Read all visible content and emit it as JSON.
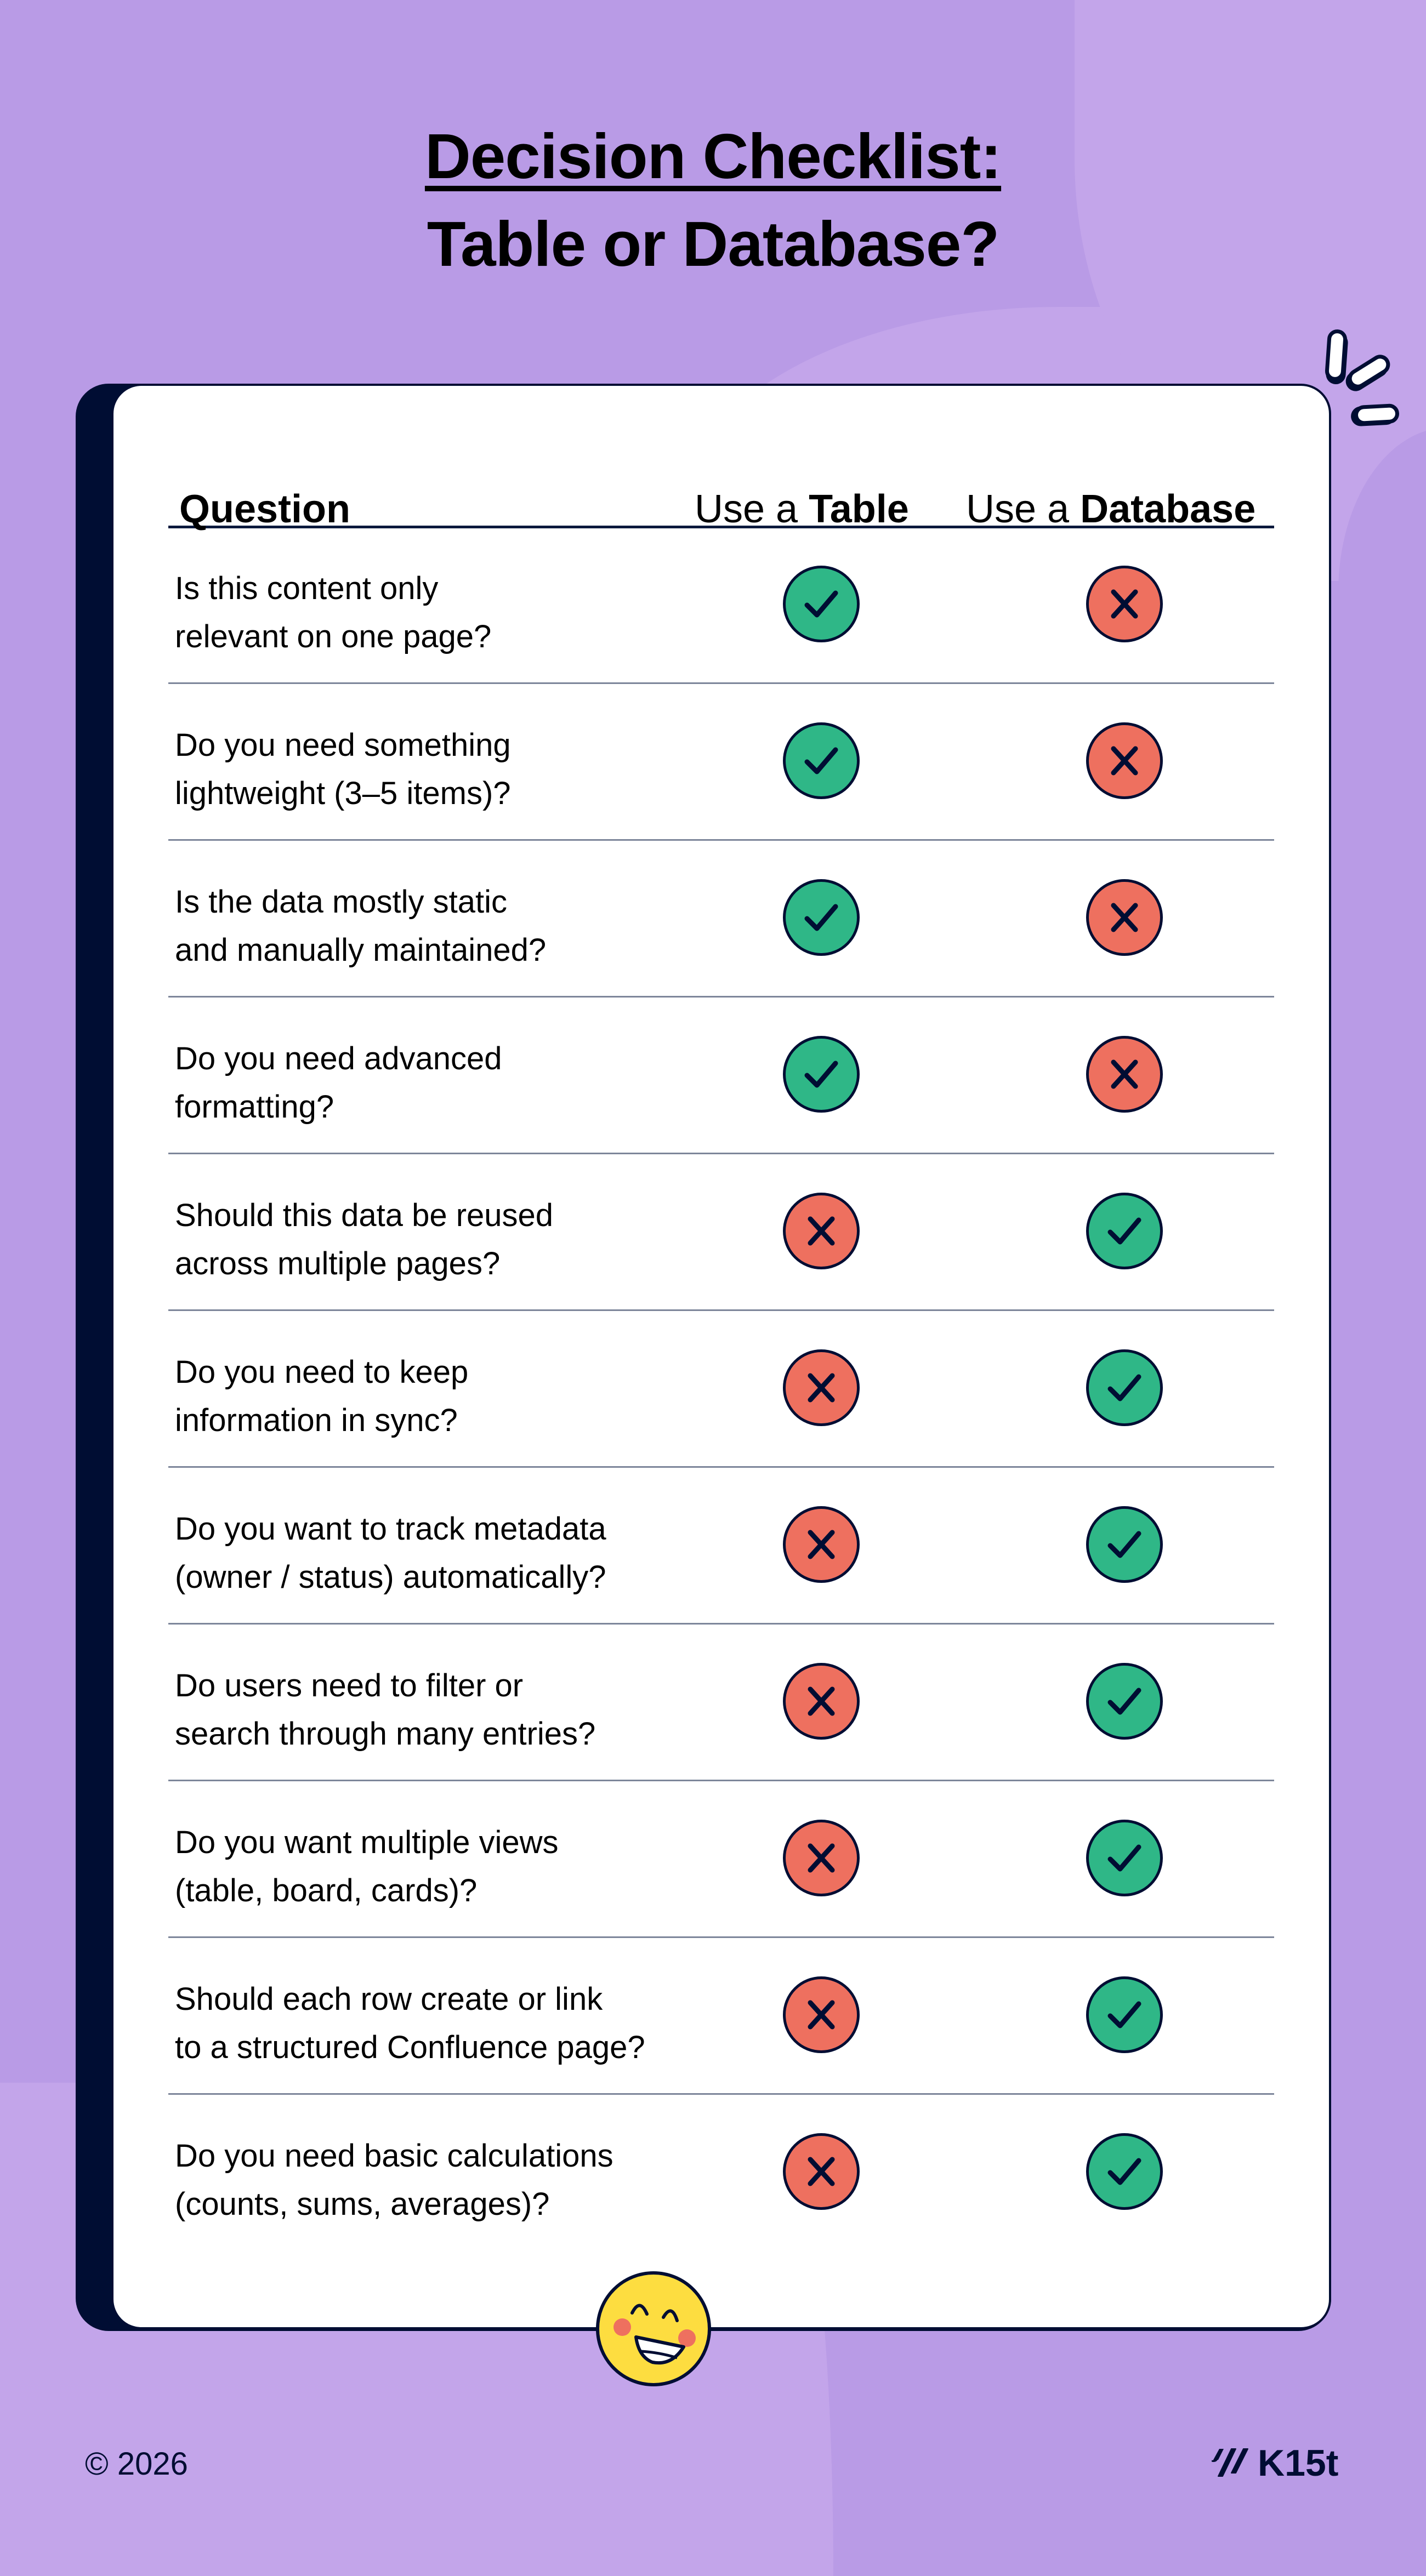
{
  "title": {
    "line1": "Decision Checklist:",
    "line2": "Table or Database?"
  },
  "table": {
    "headers": {
      "question": "Question",
      "table_prefix": "Use a ",
      "table_bold": "Table",
      "db_prefix": "Use a ",
      "db_bold": "Database"
    },
    "rows": [
      {
        "question": "Is this content only\nrelevant on one page?",
        "table": "yes",
        "database": "no"
      },
      {
        "question": "Do you need something\nlightweight (3–5 items)?",
        "table": "yes",
        "database": "no"
      },
      {
        "question": "Is the data mostly static\nand manually maintained?",
        "table": "yes",
        "database": "no"
      },
      {
        "question": "Do you need advanced\nformatting?",
        "table": "yes",
        "database": "no"
      },
      {
        "question": "Should this data be reused\nacross multiple pages?",
        "table": "no",
        "database": "yes"
      },
      {
        "question": "Do you need to keep\ninformation in sync?",
        "table": "no",
        "database": "yes"
      },
      {
        "question": "Do you want to track metadata\n(owner / status) automatically?",
        "table": "no",
        "database": "yes"
      },
      {
        "question": "Do users need to filter or\nsearch through many entries?",
        "table": "no",
        "database": "yes"
      },
      {
        "question": "Do you want multiple views\n(table, board, cards)?",
        "table": "no",
        "database": "yes"
      },
      {
        "question": "Should each row create or link\nto a structured Confluence page?",
        "table": "no",
        "database": "yes"
      },
      {
        "question": "Do you need basic calculations\n(counts, sums, averages)?",
        "table": "no",
        "database": "yes"
      }
    ]
  },
  "icons": {
    "yes": "check-icon",
    "no": "cross-icon",
    "mascot": "smiley-face-icon",
    "sparkle": "sparkle-icon",
    "logo": "k15t-logo-icon"
  },
  "colors": {
    "background": "#b99be6",
    "background_light": "#c3a5ea",
    "navy": "#000d33",
    "check_green": "#2fb787",
    "cross_red": "#ee705f",
    "smiley_yellow": "#fddd40",
    "divider": "#7d869a"
  },
  "footer": {
    "copyright": "© 2026",
    "brand": "K15t"
  }
}
